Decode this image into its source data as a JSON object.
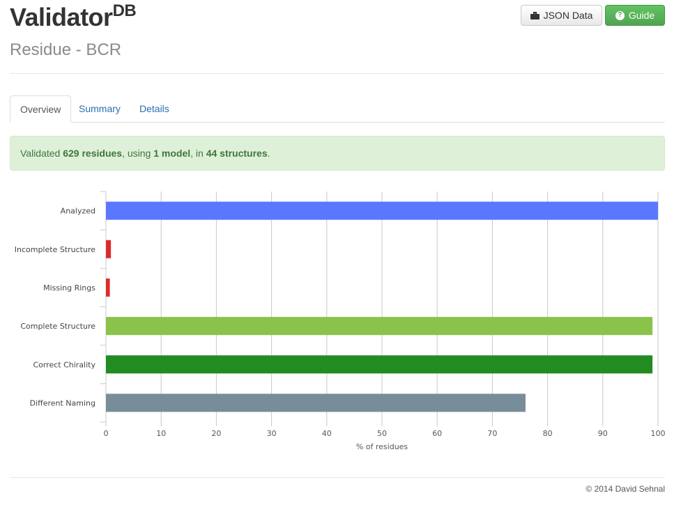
{
  "header": {
    "title": "Validator",
    "title_sup": "DB",
    "subtitle": "Residue - BCR",
    "json_button": "JSON Data",
    "guide_button": "Guide"
  },
  "tabs": [
    {
      "label": "Overview",
      "active": true
    },
    {
      "label": "Summary",
      "active": false
    },
    {
      "label": "Details",
      "active": false
    }
  ],
  "alert": {
    "prefix": "Validated ",
    "residues": "629 residues",
    "mid1": ", using ",
    "models": "1 model",
    "mid2": ", in ",
    "structures": "44 structures",
    "suffix": "."
  },
  "chart_data": {
    "type": "bar",
    "orientation": "horizontal",
    "categories": [
      "Analyzed",
      "Incomplete Structure",
      "Missing Rings",
      "Complete Structure",
      "Correct Chirality",
      "Different Naming"
    ],
    "values": [
      100,
      0.9,
      0.7,
      99,
      99,
      76
    ],
    "colors": [
      "#5a78ff",
      "#dd2a2a",
      "#dd2a2a",
      "#8bc34a",
      "#228b22",
      "#778d99"
    ],
    "xlabel": "% of residues",
    "xlim": [
      0,
      100
    ],
    "xticks": [
      0,
      10,
      20,
      30,
      40,
      50,
      60,
      70,
      80,
      90,
      100
    ],
    "grid": true
  },
  "footer": "© 2014 David Sehnal"
}
